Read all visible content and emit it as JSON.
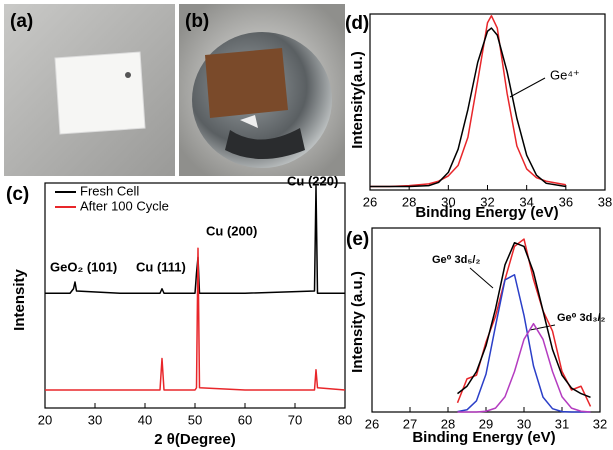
{
  "photos": [
    {
      "label": "(a)"
    },
    {
      "label": "(b)"
    }
  ],
  "chart_data": [
    {
      "type": "line",
      "panel_label": "(c)",
      "xlabel": "2 θ(Degree)",
      "ylabel": "Intensity",
      "x": [
        20,
        25,
        25.7,
        26,
        26.3,
        35,
        43,
        43.4,
        43.8,
        50,
        50.3,
        50.6,
        50.9,
        60,
        73.9,
        74.2,
        74.5,
        80
      ],
      "xlim": [
        20,
        80
      ],
      "xticks": [
        20,
        30,
        40,
        50,
        60,
        70,
        80
      ],
      "ylim": [
        0,
        100
      ],
      "series": [
        {
          "name": "Fresh Cell",
          "color": "#000000",
          "values": [
            51,
            51,
            53,
            56,
            52,
            51,
            51,
            53,
            51,
            51,
            60,
            67,
            51,
            51,
            52,
            98.6,
            51,
            51
          ]
        },
        {
          "name": "After 100 Cycle",
          "color": "#e8262a",
          "values": [
            8,
            8,
            8,
            8,
            8,
            8,
            8,
            22,
            8,
            8,
            9,
            71,
            9,
            8,
            8,
            17,
            9,
            8
          ]
        }
      ],
      "annotations": [
        "GeO₂ (101)",
        "Cu (111)",
        "Cu (200)",
        "Cu (220)"
      ]
    },
    {
      "type": "line",
      "panel_label": "(d)",
      "xlabel": "Binding Energy (eV)",
      "ylabel": "Intensity(a.u.)",
      "x": [
        26,
        27,
        28,
        29,
        29.5,
        30,
        30.5,
        31,
        31.5,
        32,
        32.2,
        32.5,
        33,
        33.5,
        34,
        34.5,
        35,
        36
      ],
      "xlim": [
        26,
        38
      ],
      "xticks": [
        26,
        28,
        30,
        32,
        34,
        36,
        38
      ],
      "ylim": [
        0,
        100
      ],
      "series": [
        {
          "color": "#e8262a",
          "values": [
            2,
            2,
            2.5,
            3.5,
            5,
            8,
            14,
            30,
            62,
            95,
            99,
            92,
            55,
            25,
            12,
            7,
            5,
            3
          ]
        },
        {
          "color": "#000000",
          "values": [
            2,
            2,
            2,
            2.5,
            4.3,
            10,
            23.2,
            45.8,
            72.5,
            90.2,
            92,
            88,
            67.3,
            40.7,
            19.8,
            8.4,
            3.8,
            2
          ]
        }
      ],
      "annotations": [
        "Ge⁴⁺"
      ]
    },
    {
      "type": "line",
      "panel_label": "(e)",
      "xlabel": "Binding Energy (eV)",
      "ylabel": "Intensity (a.u.)",
      "x": [
        28.25,
        28.5,
        28.75,
        29,
        29.25,
        29.5,
        29.75,
        30,
        30.25,
        30.5,
        30.75,
        31,
        31.25,
        31.5,
        31.75
      ],
      "xlim": [
        26,
        32
      ],
      "xticks": [
        26,
        27,
        28,
        29,
        30,
        31,
        32
      ],
      "ylim": [
        0,
        100
      ],
      "series": [
        {
          "color": "#e8262a",
          "values": [
            5,
            18,
            20,
            38,
            52,
            72,
            90,
            94,
            72,
            55,
            44,
            22,
            12,
            14,
            3
          ]
        },
        {
          "color": "#2b3fc8",
          "values": [
            0.2,
            1.2,
            6.1,
            20.6,
            46.7,
            71.8,
            74.6,
            52.5,
            25,
            8.1,
            1.8,
            0.2,
            0,
            0,
            0
          ]
        },
        {
          "color": "#b43cc0",
          "values": [
            0,
            0,
            0,
            0.4,
            2.1,
            8.3,
            22,
            39.5,
            48,
            39.5,
            22,
            8.3,
            2.1,
            0.4,
            0
          ]
        },
        {
          "color": "#000000",
          "values": [
            10,
            14,
            22,
            36,
            56,
            80,
            92,
            90,
            76,
            55,
            34,
            20,
            13,
            10,
            8
          ]
        }
      ],
      "annotations": [
        "Ge⁰ 3d₅/₂",
        "Ge⁰ 3d₃/₂"
      ]
    }
  ]
}
